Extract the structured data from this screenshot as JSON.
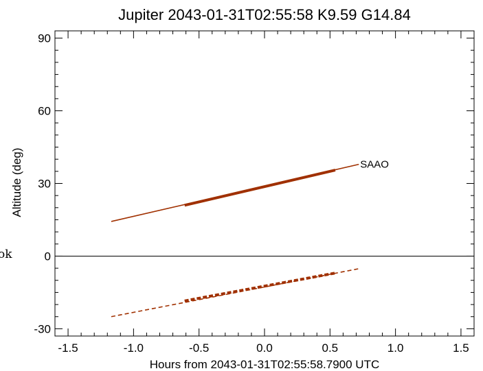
{
  "chart_data": {
    "type": "line",
    "title": "Jupiter 2043-01-31T02:55:58  K9.59  G14.84",
    "xlabel": "Hours from 2043-01-31T02:55:58.7900 UTC",
    "ylabel": "Altitude (deg)",
    "xlim": [
      -1.6,
      1.6
    ],
    "ylim": [
      -33,
      93
    ],
    "xticks": [
      -1.5,
      -1.0,
      -0.5,
      0.0,
      0.5,
      1.0,
      1.5
    ],
    "xtick_labels": [
      "-1.5",
      "-1.0",
      "-0.5",
      "0.0",
      "0.5",
      "1.0",
      "1.5"
    ],
    "yticks": [
      -30,
      0,
      30,
      60,
      90
    ],
    "ytick_labels": [
      "-30",
      "0",
      "30",
      "60",
      "90"
    ],
    "zero_line": 0,
    "grid": false,
    "series": [
      {
        "name": "SAAO",
        "label_text": "SAAO",
        "color": "#a03000",
        "style": "solid",
        "x": [
          -1.17,
          0.72
        ],
        "y": [
          14.3,
          37.9
        ],
        "highlight": {
          "x": [
            -0.61,
            0.54
          ],
          "y": [
            21.0,
            35.5
          ]
        }
      },
      {
        "color": "#a03000",
        "style": "dashed",
        "x": [
          -1.17,
          0.72
        ],
        "y": [
          -25.0,
          -5.2
        ],
        "highlight": {
          "x": [
            -0.61,
            0.54
          ],
          "y": [
            -18.5,
            -7.0
          ]
        }
      }
    ]
  },
  "stray_label": "ok"
}
